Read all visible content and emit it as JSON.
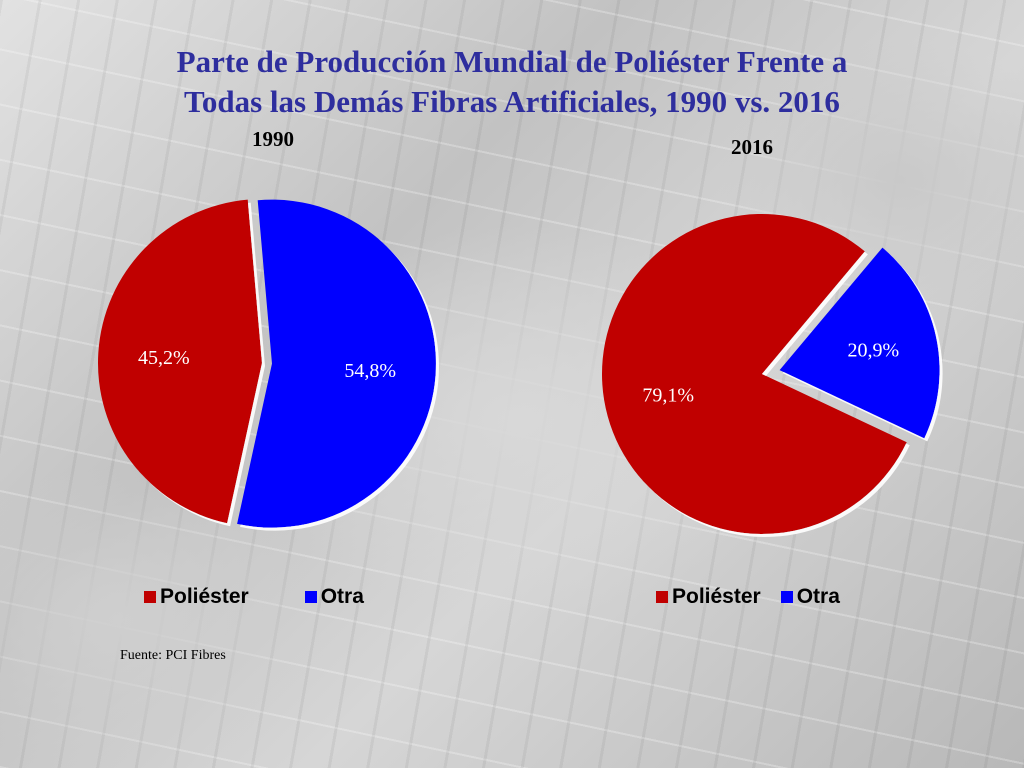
{
  "title_line1": "Parte de Producción Mundial de Poliéster Frente a",
  "title_line2": "Todas las Demás Fibras Artificiales, 1990 vs. 2016",
  "source": "Fuente: PCI Fibres",
  "colors": {
    "poliester": "#c00000",
    "otra": "#0000ff",
    "title": "#2e2e9e"
  },
  "chart_data": [
    {
      "type": "pie",
      "title": "1990",
      "categories": [
        "Poliéster",
        "Otra"
      ],
      "values": [
        45.2,
        54.8
      ],
      "labels": [
        "45,2%",
        "54,8%"
      ],
      "exploded": "Otra",
      "legend": "bottom"
    },
    {
      "type": "pie",
      "title": "2016",
      "categories": [
        "Poliéster",
        "Otra"
      ],
      "values": [
        79.1,
        20.9
      ],
      "labels": [
        "79,1%",
        "20,9%"
      ],
      "exploded": "Otra",
      "legend": "bottom"
    }
  ]
}
